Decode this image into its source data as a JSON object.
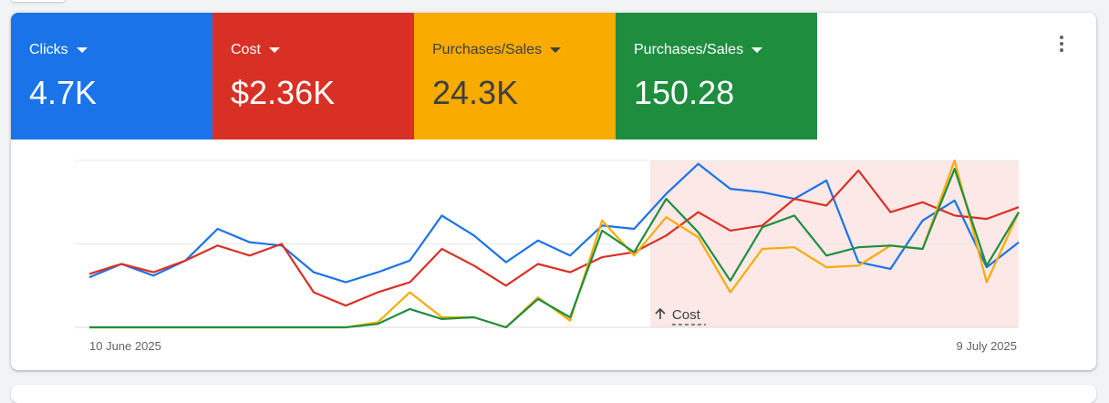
{
  "tiles": [
    {
      "label": "Clicks",
      "value": "4.7K",
      "color": "#1a73e8",
      "text_color": "#ffffff"
    },
    {
      "label": "Cost",
      "value": "$2.36K",
      "color": "#d93025",
      "text_color": "#ffffff"
    },
    {
      "label": "Purchases/Sales",
      "value": "24.3K",
      "color": "#f9ab00",
      "text_color": "#3c4043"
    },
    {
      "label": "Purchases/Sales",
      "value": "150.28",
      "color": "#1e8e3e",
      "text_color": "#ffffff"
    }
  ],
  "menu_icon": "more-vert-icon",
  "chart_data": {
    "type": "line",
    "title": "",
    "xlabel": "",
    "ylabel": "",
    "x": [
      "10 Jun",
      "11 Jun",
      "12 Jun",
      "13 Jun",
      "14 Jun",
      "15 Jun",
      "16 Jun",
      "17 Jun",
      "18 Jun",
      "19 Jun",
      "20 Jun",
      "21 Jun",
      "22 Jun",
      "23 Jun",
      "24 Jun",
      "25 Jun",
      "26 Jun",
      "27 Jun",
      "28 Jun",
      "29 Jun",
      "30 Jun",
      "1 Jul",
      "2 Jul",
      "3 Jul",
      "4 Jul",
      "5 Jul",
      "6 Jul",
      "7 Jul",
      "8 Jul",
      "9 Jul"
    ],
    "x_tick_labels": [
      {
        "index": 0,
        "label": "10 June 2025"
      },
      {
        "index": 29,
        "label": "9 July 2025"
      }
    ],
    "ylim": [
      0,
      100
    ],
    "grid": true,
    "highlight": {
      "start_index": 18,
      "end_index": 29,
      "label": "Cost",
      "color": "#fce8e6"
    },
    "series": [
      {
        "key": "clicks",
        "color": "#1a73e8",
        "values": [
          30,
          38,
          31,
          40,
          59,
          51,
          49,
          33,
          27,
          33,
          40,
          67,
          55,
          39,
          52,
          43,
          61,
          59,
          80,
          98,
          83,
          81,
          77,
          88,
          39,
          35,
          64,
          76,
          36,
          51
        ]
      },
      {
        "key": "cost",
        "color": "#d93025",
        "values": [
          32,
          38,
          33,
          40,
          49,
          43,
          50,
          21,
          13,
          21,
          27,
          47,
          37,
          25,
          38,
          33,
          42,
          45,
          55,
          69,
          58,
          61,
          77,
          73,
          94,
          69,
          75,
          67,
          65,
          72
        ]
      },
      {
        "key": "purchases_sales_1",
        "color": "#f9ab00",
        "values": [
          0,
          0,
          0,
          0,
          0,
          0,
          0,
          0,
          0,
          3,
          21,
          6,
          6,
          0,
          18,
          4,
          64,
          43,
          66,
          54,
          21,
          47,
          48,
          36,
          37,
          49,
          47,
          100,
          27,
          69
        ]
      },
      {
        "key": "purchases_sales_2",
        "color": "#1e8e3e",
        "values": [
          0,
          0,
          0,
          0,
          0,
          0,
          0,
          0,
          0,
          2,
          11,
          5,
          6,
          0,
          17,
          6,
          58,
          45,
          77,
          57,
          28,
          60,
          67,
          43,
          48,
          49,
          47,
          95,
          37,
          69
        ]
      }
    ]
  }
}
